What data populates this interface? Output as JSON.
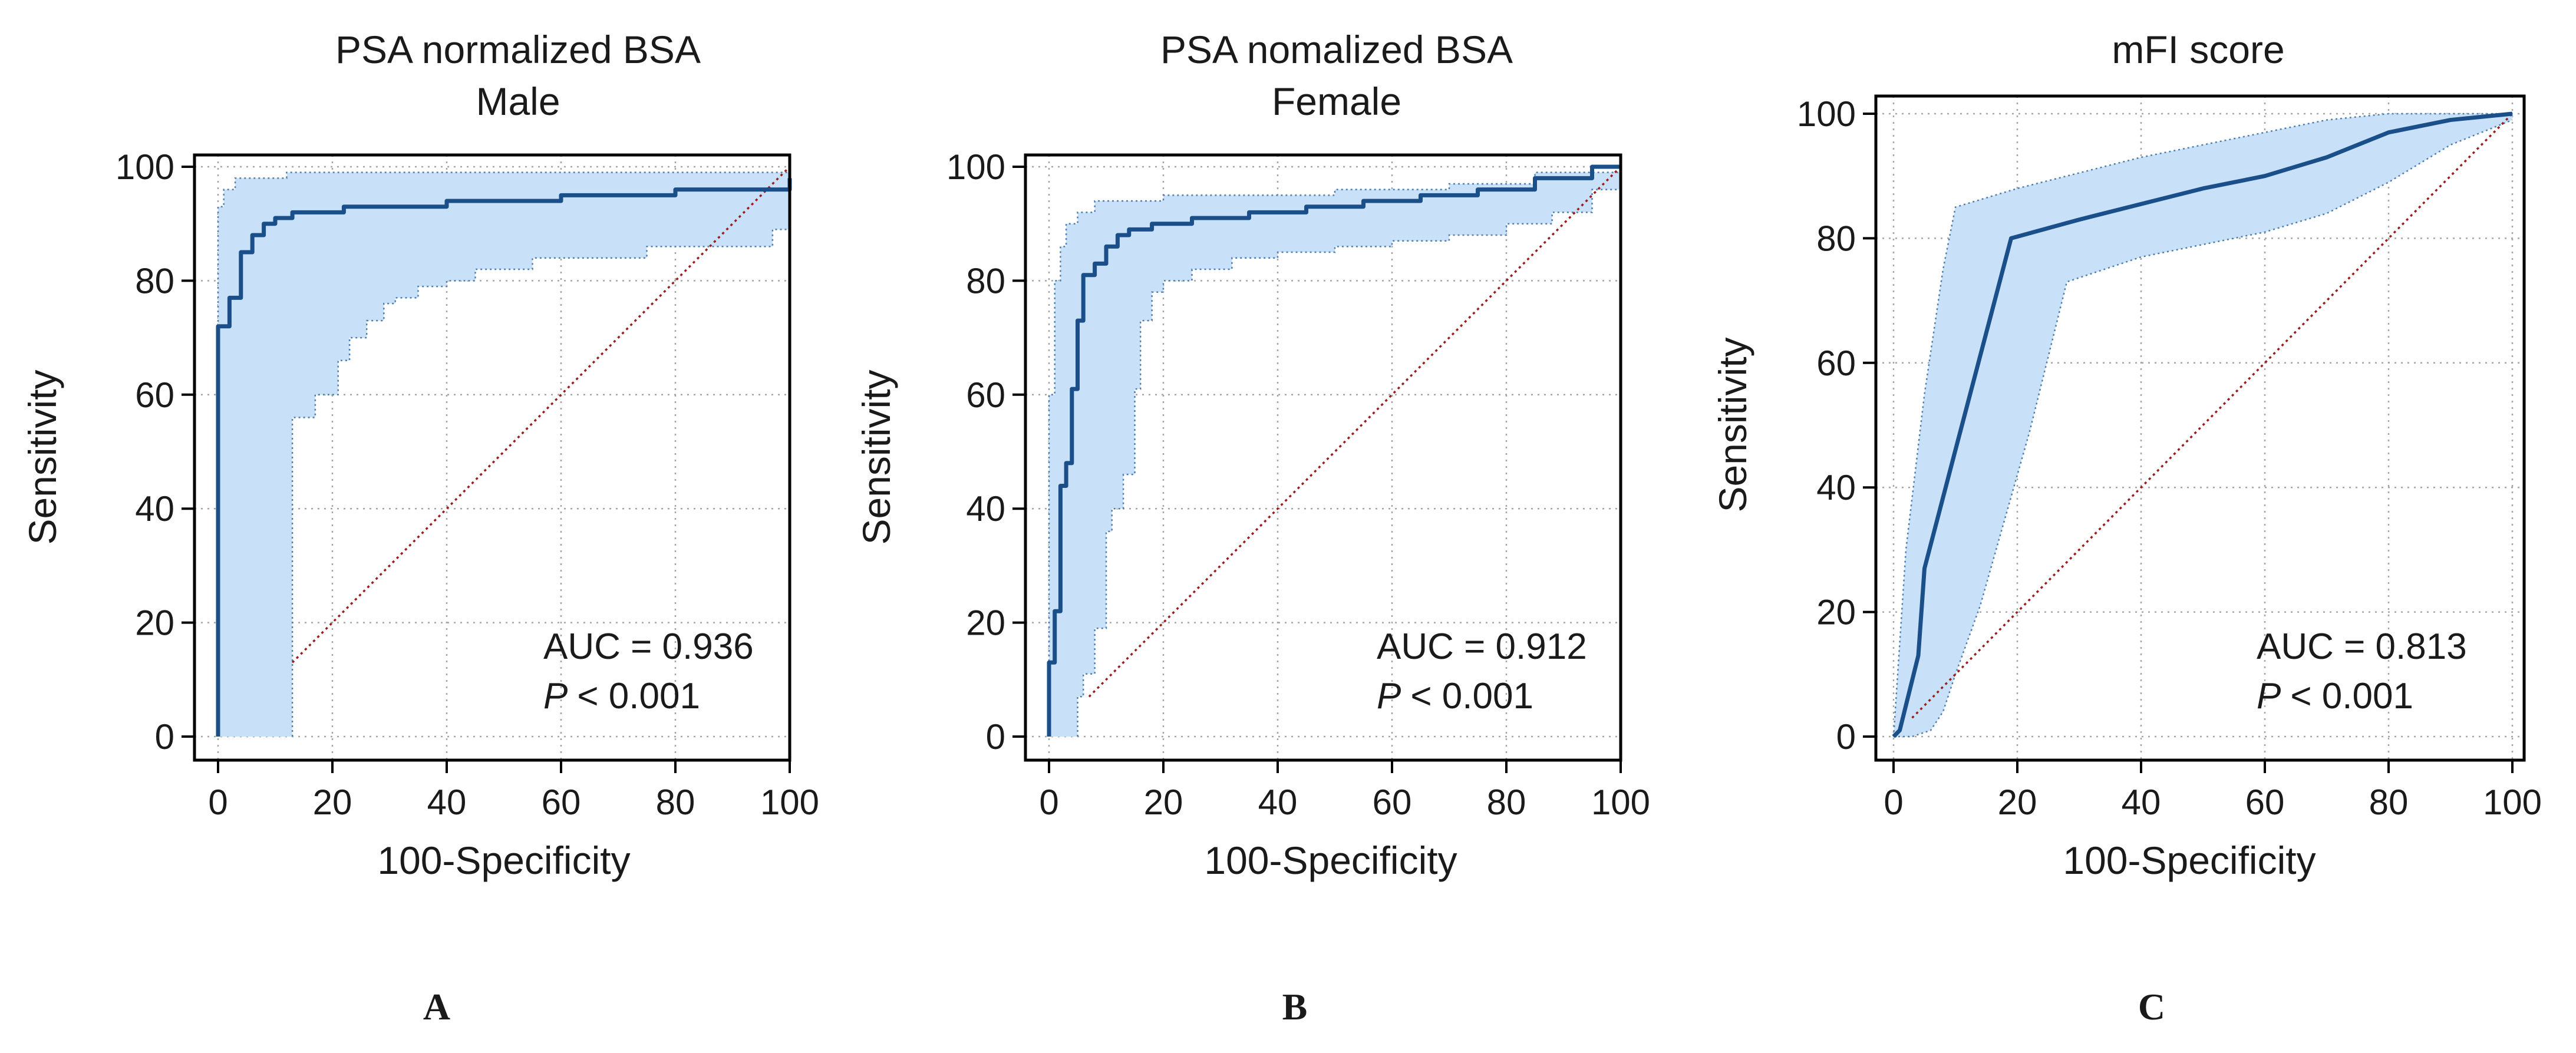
{
  "colors": {
    "roc_line": "#1a4f8a",
    "ci_fill": "#c9e1f8",
    "ci_border": "#4f7fb0",
    "reference": "#9c1c1c"
  },
  "chart_data": [
    {
      "type": "line",
      "panel": "A",
      "title": "PSA normalized BSA",
      "subtitle": "Male",
      "xlabel": "100-Specificity",
      "ylabel": "Sensitivity",
      "xlim": [
        0,
        100
      ],
      "ylim": [
        0,
        100
      ],
      "xticks": [
        "0",
        "20",
        "40",
        "60",
        "80",
        "100"
      ],
      "yticks": [
        "0",
        "20",
        "40",
        "60",
        "80",
        "100"
      ],
      "grid": true,
      "auc_label": "AUC = 0.936",
      "p_symbol": "P",
      "p_value": "< 0.001",
      "series": [
        {
          "name": "ROC curve",
          "step": true,
          "x": [
            0,
            0,
            2,
            2,
            4,
            4,
            6,
            6,
            8,
            8,
            10,
            10,
            13,
            13,
            22,
            22,
            40,
            40,
            60,
            60,
            80,
            80,
            100,
            100
          ],
          "y": [
            0,
            72,
            72,
            77,
            77,
            85,
            85,
            88,
            88,
            90,
            90,
            91,
            91,
            92,
            92,
            93,
            93,
            94,
            94,
            95,
            95,
            96,
            96,
            98
          ]
        },
        {
          "name": "Upper 95% CI",
          "step": true,
          "x": [
            0,
            0,
            1,
            1,
            3,
            3,
            12,
            12,
            100
          ],
          "y": [
            0,
            93,
            93,
            96,
            96,
            98,
            98,
            99,
            99
          ]
        },
        {
          "name": "Lower 95% CI",
          "step": true,
          "x": [
            13,
            13,
            17,
            17,
            21,
            21,
            23,
            23,
            26,
            26,
            29,
            29,
            31,
            31,
            35,
            35,
            40,
            40,
            45,
            45,
            55,
            55,
            75,
            75,
            97,
            97,
            100,
            100
          ],
          "y": [
            0,
            56,
            56,
            60,
            60,
            66,
            66,
            70,
            70,
            73,
            73,
            76,
            76,
            77,
            77,
            79,
            79,
            80,
            80,
            82,
            82,
            84,
            84,
            86,
            86,
            89,
            89,
            91
          ]
        },
        {
          "name": "Reference",
          "x": [
            13,
            100
          ],
          "y": [
            13,
            100
          ]
        }
      ]
    },
    {
      "type": "line",
      "panel": "B",
      "title": "PSA nomalized BSA",
      "subtitle": "Female",
      "xlabel": "100-Specificity",
      "ylabel": "Sensitivity",
      "xlim": [
        0,
        100
      ],
      "ylim": [
        0,
        100
      ],
      "xticks": [
        "0",
        "20",
        "40",
        "60",
        "80",
        "100"
      ],
      "yticks": [
        "0",
        "20",
        "40",
        "60",
        "80",
        "100"
      ],
      "grid": true,
      "auc_label": "AUC = 0.912",
      "p_symbol": "P",
      "p_value": "< 0.001",
      "series": [
        {
          "name": "ROC curve",
          "step": true,
          "x": [
            0,
            0,
            1,
            1,
            2,
            2,
            3,
            3,
            4,
            4,
            5,
            5,
            6,
            6,
            8,
            8,
            10,
            10,
            12,
            12,
            14,
            14,
            18,
            18,
            25,
            25,
            35,
            35,
            45,
            45,
            55,
            55,
            65,
            65,
            75,
            75,
            85,
            85,
            95,
            95,
            100
          ],
          "y": [
            0,
            13,
            13,
            22,
            22,
            44,
            44,
            48,
            48,
            61,
            61,
            73,
            73,
            81,
            81,
            83,
            83,
            86,
            86,
            88,
            88,
            89,
            89,
            90,
            90,
            91,
            91,
            92,
            92,
            93,
            93,
            94,
            94,
            95,
            95,
            96,
            96,
            98,
            98,
            100,
            100
          ]
        },
        {
          "name": "Upper 95% CI",
          "step": true,
          "x": [
            0,
            0,
            1,
            1,
            2,
            2,
            3,
            3,
            5,
            5,
            8,
            8,
            20,
            20,
            50,
            50,
            70,
            70,
            85,
            85,
            100
          ],
          "y": [
            0,
            60,
            60,
            80,
            80,
            86,
            86,
            90,
            90,
            92,
            92,
            94,
            94,
            95,
            95,
            96,
            96,
            97,
            97,
            99,
            99
          ]
        },
        {
          "name": "Lower 95% CI",
          "step": true,
          "x": [
            5,
            5,
            6,
            6,
            8,
            8,
            10,
            10,
            11,
            11,
            13,
            13,
            15,
            15,
            16,
            16,
            18,
            18,
            20,
            20,
            25,
            25,
            32,
            32,
            40,
            40,
            50,
            50,
            60,
            60,
            70,
            70,
            80,
            80,
            88,
            88,
            95,
            95,
            100
          ],
          "y": [
            0,
            7,
            7,
            11,
            11,
            19,
            19,
            36,
            36,
            40,
            40,
            46,
            46,
            61,
            61,
            73,
            73,
            78,
            78,
            80,
            80,
            82,
            82,
            84,
            84,
            85,
            85,
            86,
            86,
            87,
            87,
            88,
            88,
            90,
            90,
            92,
            92,
            96,
            96
          ]
        },
        {
          "name": "Reference",
          "x": [
            7,
            100
          ],
          "y": [
            7,
            100
          ]
        }
      ]
    },
    {
      "type": "line",
      "panel": "C",
      "title": "mFI score",
      "subtitle": "",
      "xlabel": "100-Specificity",
      "ylabel": "Sensitivity",
      "xlim": [
        0,
        100
      ],
      "ylim": [
        0,
        100
      ],
      "xticks": [
        "0",
        "20",
        "40",
        "60",
        "80",
        "100"
      ],
      "yticks": [
        "0",
        "20",
        "40",
        "60",
        "80",
        "100"
      ],
      "grid": true,
      "auc_label": "AUC = 0.813",
      "p_symbol": "P",
      "p_value": "< 0.001",
      "series": [
        {
          "name": "ROC curve",
          "x": [
            0,
            1,
            2,
            4,
            5,
            10,
            19,
            30,
            40,
            50,
            60,
            70,
            80,
            90,
            100
          ],
          "y": [
            0,
            1,
            5,
            13,
            27,
            46,
            80,
            83,
            85.5,
            88,
            90,
            93,
            97,
            99,
            100
          ]
        },
        {
          "name": "Upper 95% CI",
          "x": [
            0,
            2,
            5,
            8,
            10,
            20,
            40,
            60,
            70,
            80,
            90,
            100
          ],
          "y": [
            0,
            30,
            55,
            75,
            85,
            88,
            93,
            97,
            99,
            100,
            100,
            100
          ]
        },
        {
          "name": "Lower 95% CI",
          "x": [
            0,
            3,
            6,
            8,
            10,
            14,
            22,
            28,
            40,
            60,
            70,
            80,
            90,
            100
          ],
          "y": [
            0,
            0,
            1,
            4,
            10,
            21,
            49,
            73,
            77,
            81,
            84,
            89,
            95,
            99
          ]
        },
        {
          "name": "Reference",
          "x": [
            3,
            100
          ],
          "y": [
            3,
            100
          ]
        }
      ]
    }
  ]
}
